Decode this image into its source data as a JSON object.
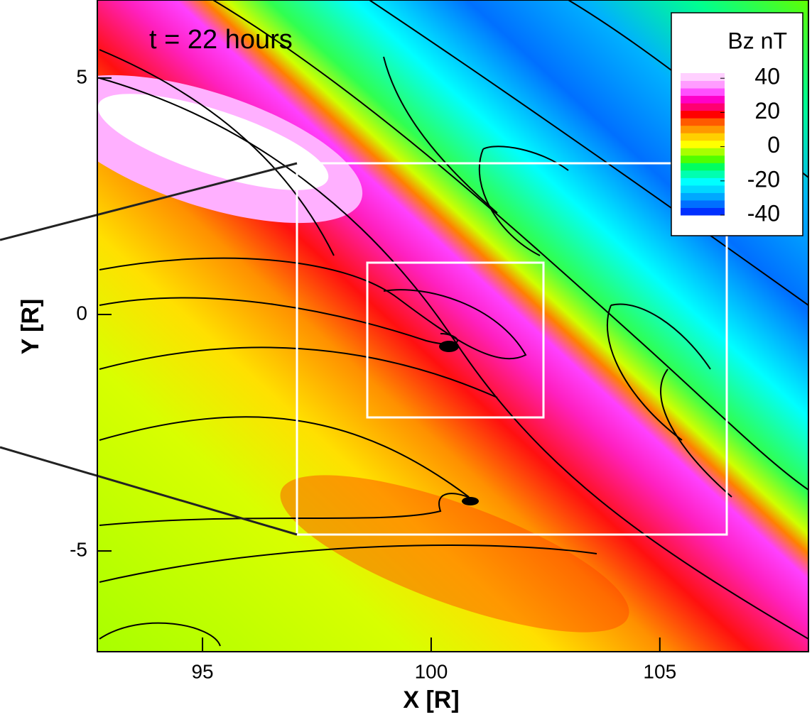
{
  "chart_data": {
    "type": "contour",
    "annotation": "t = 22 hours",
    "x_label": "X [R]",
    "y_label": "Y [R]",
    "xlim": [
      92.7,
      108.25
    ],
    "ylim": [
      -7.13,
      6.65
    ],
    "xticks": [
      95,
      100,
      105
    ],
    "yticks": [
      5,
      0,
      -5
    ],
    "colorbar": {
      "title": "Bz nT",
      "clim": [
        -40,
        43
      ],
      "ticks": [
        40,
        20,
        0,
        -20,
        -40
      ],
      "colors": [
        "#0030ff",
        "#0070ff",
        "#00a8ff",
        "#00d8ff",
        "#00ffff",
        "#00ffb0",
        "#00ff60",
        "#50ff00",
        "#a8ff00",
        "#ffff00",
        "#ffd000",
        "#ff9800",
        "#ff5a00",
        "#ff0000",
        "#ff0070",
        "#ff00c8",
        "#ff50ff",
        "#ff9cff",
        "#ffd0ff"
      ]
    }
  }
}
